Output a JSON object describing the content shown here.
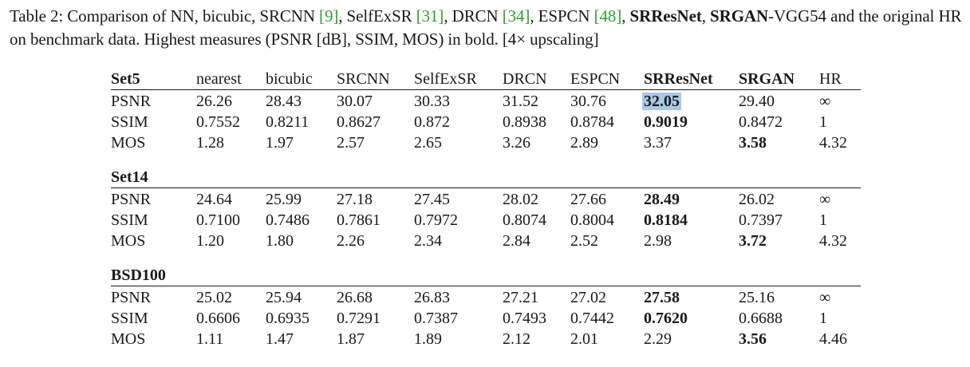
{
  "caption": {
    "p1": "Table 2: Comparison of NN, bicubic, SRCNN ",
    "r1": "[9]",
    "p2": ", SelfExSR ",
    "r2": "[31]",
    "p3": ", DRCN ",
    "r3": "[34]",
    "p4": ", ESPCN ",
    "r4": "[48]",
    "p5": ", ",
    "b1": "SRResNet",
    "p6": ", ",
    "b2": "SRGAN",
    "p7": "-VGG54 and the original HR on benchmark data. Highest measures (PSNR [dB], SSIM, MOS) in bold. [4× upscaling]"
  },
  "columns": [
    "nearest",
    "bicubic",
    "SRCNN",
    "SelfExSR",
    "DRCN",
    "ESPCN",
    "SRResNet",
    "SRGAN",
    "HR"
  ],
  "sections": [
    {
      "name": "Set5",
      "rows": [
        {
          "metric": "PSNR",
          "values": [
            "26.26",
            "28.43",
            "30.07",
            "30.33",
            "31.52",
            "30.76",
            "32.05",
            "29.40",
            "∞"
          ],
          "bold": 6
        },
        {
          "metric": "SSIM",
          "values": [
            "0.7552",
            "0.8211",
            "0.8627",
            "0.872",
            "0.8938",
            "0.8784",
            "0.9019",
            "0.8472",
            "1"
          ],
          "bold": 6
        },
        {
          "metric": "MOS",
          "values": [
            "1.28",
            "1.97",
            "2.57",
            "2.65",
            "3.26",
            "2.89",
            "3.37",
            "3.58",
            "4.32"
          ],
          "bold": 7
        }
      ]
    },
    {
      "name": "Set14",
      "rows": [
        {
          "metric": "PSNR",
          "values": [
            "24.64",
            "25.99",
            "27.18",
            "27.45",
            "28.02",
            "27.66",
            "28.49",
            "26.02",
            "∞"
          ],
          "bold": 6
        },
        {
          "metric": "SSIM",
          "values": [
            "0.7100",
            "0.7486",
            "0.7861",
            "0.7972",
            "0.8074",
            "0.8004",
            "0.8184",
            "0.7397",
            "1"
          ],
          "bold": 6
        },
        {
          "metric": "MOS",
          "values": [
            "1.20",
            "1.80",
            "2.26",
            "2.34",
            "2.84",
            "2.52",
            "2.98",
            "3.72",
            "4.32"
          ],
          "bold": 7
        }
      ]
    },
    {
      "name": "BSD100",
      "rows": [
        {
          "metric": "PSNR",
          "values": [
            "25.02",
            "25.94",
            "26.68",
            "26.83",
            "27.21",
            "27.02",
            "27.58",
            "25.16",
            "∞"
          ],
          "bold": 6
        },
        {
          "metric": "SSIM",
          "values": [
            "0.6606",
            "0.6935",
            "0.7291",
            "0.7387",
            "0.7493",
            "0.7442",
            "0.7620",
            "0.6688",
            "1"
          ],
          "bold": 6
        },
        {
          "metric": "MOS",
          "values": [
            "1.11",
            "1.47",
            "1.87",
            "1.89",
            "2.12",
            "2.01",
            "2.29",
            "3.56",
            "4.46"
          ],
          "bold": 7
        }
      ]
    }
  ],
  "highlight": {
    "section": 0,
    "row": 0,
    "col": 6
  },
  "colors": {
    "reference": "#2ca02c",
    "selection": "#a9c9e8"
  }
}
